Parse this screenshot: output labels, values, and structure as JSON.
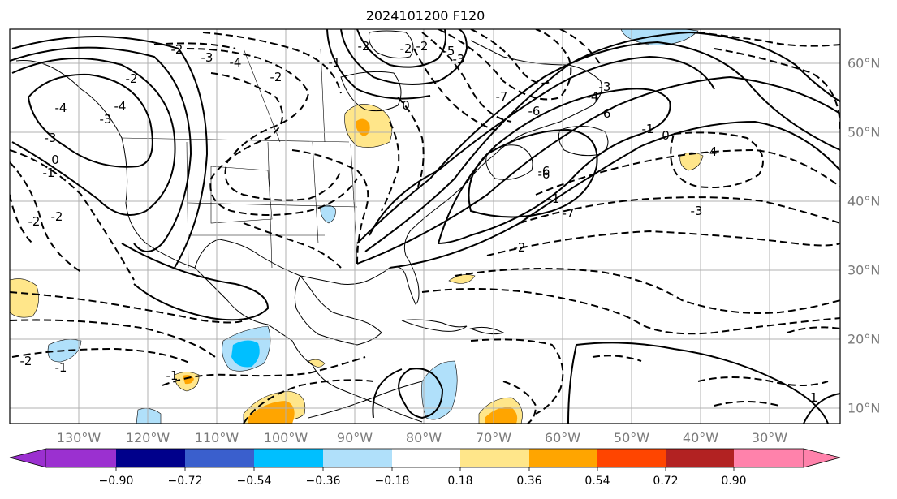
{
  "title": "2024101200 F120",
  "lon_labels": [
    "130°W",
    "120°W",
    "110°W",
    "100°W",
    "90°W",
    "80°W",
    "70°W",
    "60°W",
    "50°W",
    "40°W",
    "30°W"
  ],
  "lat_labels": [
    "60°N",
    "50°N",
    "40°N",
    "30°N",
    "20°N",
    "10°N"
  ],
  "contour_labels": [
    "-2",
    "-2",
    "-3",
    "-4",
    "-4",
    "0",
    "-1",
    "-2",
    "-3",
    "-2",
    "-1",
    "-2",
    "-3",
    "-7",
    "-6",
    "-4",
    "-3",
    "-5",
    "-6",
    "-7",
    "-6",
    "0",
    "-1",
    "-2",
    "-3",
    "-4",
    "-6",
    "-1",
    "-2",
    "-2",
    "-1",
    "0",
    "-1",
    "-3",
    "-4",
    "-2",
    "-1",
    "-2"
  ],
  "colorbar": {
    "ticks": [
      "−0.90",
      "−0.72",
      "−0.54",
      "−0.36",
      "−0.18",
      "0.18",
      "0.36",
      "0.54",
      "0.72",
      "0.90"
    ],
    "colors": [
      "#9b30d0",
      "#00008b",
      "#3a5fcd",
      "#00bfff",
      "#b0e0fa",
      "#ffffff",
      "#ffe68a",
      "#ffa500",
      "#ff4500",
      "#b22222",
      "#ff82ab"
    ]
  }
}
